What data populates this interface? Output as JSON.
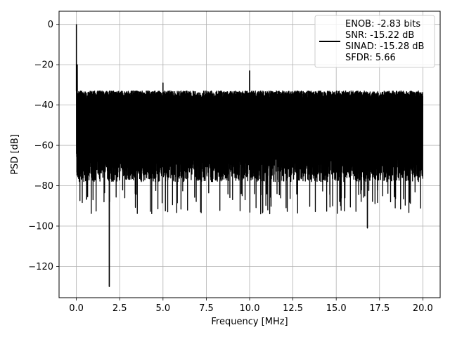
{
  "chart_data": {
    "type": "line",
    "title": "",
    "xlabel": "Frequency [MHz]",
    "ylabel": "PSD [dB]",
    "xlim": [
      -1.0,
      21.0
    ],
    "ylim": [
      -135.5,
      6.5
    ],
    "xticks": [
      0.0,
      2.5,
      5.0,
      7.5,
      10.0,
      12.5,
      15.0,
      17.5,
      20.0
    ],
    "xtick_labels": [
      "0.0",
      "2.5",
      "5.0",
      "7.5",
      "10.0",
      "12.5",
      "15.0",
      "17.5",
      "20.0"
    ],
    "yticks": [
      0,
      -20,
      -40,
      -60,
      -80,
      -100,
      -120
    ],
    "ytick_labels": [
      "0",
      "−20",
      "−40",
      "−60",
      "−80",
      "−100",
      "−120"
    ],
    "grid": true,
    "legend_position": "top-right",
    "legend_lines": [
      "ENOB: -2.83 bits",
      "SNR: -15.22 dB",
      "SINAD: -15.28 dB",
      "SFDR: 5.66"
    ],
    "series": [
      {
        "color": "#000000",
        "noise_floor": {
          "x_range": [
            0.0,
            20.0
          ],
          "upper_envelope_db": -33,
          "lower_envelope_db": -78
        },
        "spikes": [
          {
            "x": 0.0,
            "y": 0
          },
          {
            "x": 0.05,
            "y": -20
          },
          {
            "x": 1.9,
            "y": -130
          },
          {
            "x": 5.0,
            "y": -29
          },
          {
            "x": 10.0,
            "y": -23
          },
          {
            "x": 16.8,
            "y": -101
          }
        ]
      }
    ]
  }
}
